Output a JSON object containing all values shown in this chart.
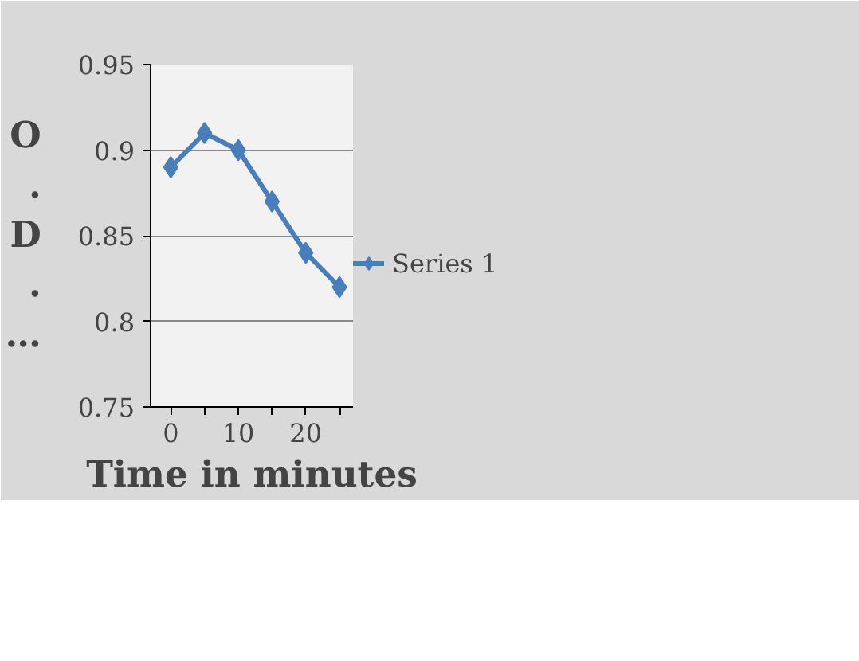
{
  "chart_data": {
    "type": "line",
    "xlabel": "Time in minutes",
    "ylabel": "O.D.…",
    "x": [
      0,
      5,
      10,
      15,
      20,
      25
    ],
    "series": [
      {
        "name": "Series 1",
        "color": "#4a7ebb",
        "values": [
          0.89,
          0.91,
          0.9,
          0.87,
          0.84,
          0.82
        ]
      }
    ],
    "xlim": [
      -3,
      27
    ],
    "xticks": [
      0,
      {
        "value": 5,
        "label": null
      },
      10,
      {
        "value": 15,
        "label": null
      },
      20,
      {
        "value": 25,
        "label": null
      }
    ],
    "ylim": [
      0.75,
      0.95
    ],
    "yticks": [
      0.75,
      0.8,
      0.85,
      0.9,
      0.95
    ],
    "grid": "y",
    "legend": "right",
    "marker": "diamond",
    "line_style": "solid"
  }
}
